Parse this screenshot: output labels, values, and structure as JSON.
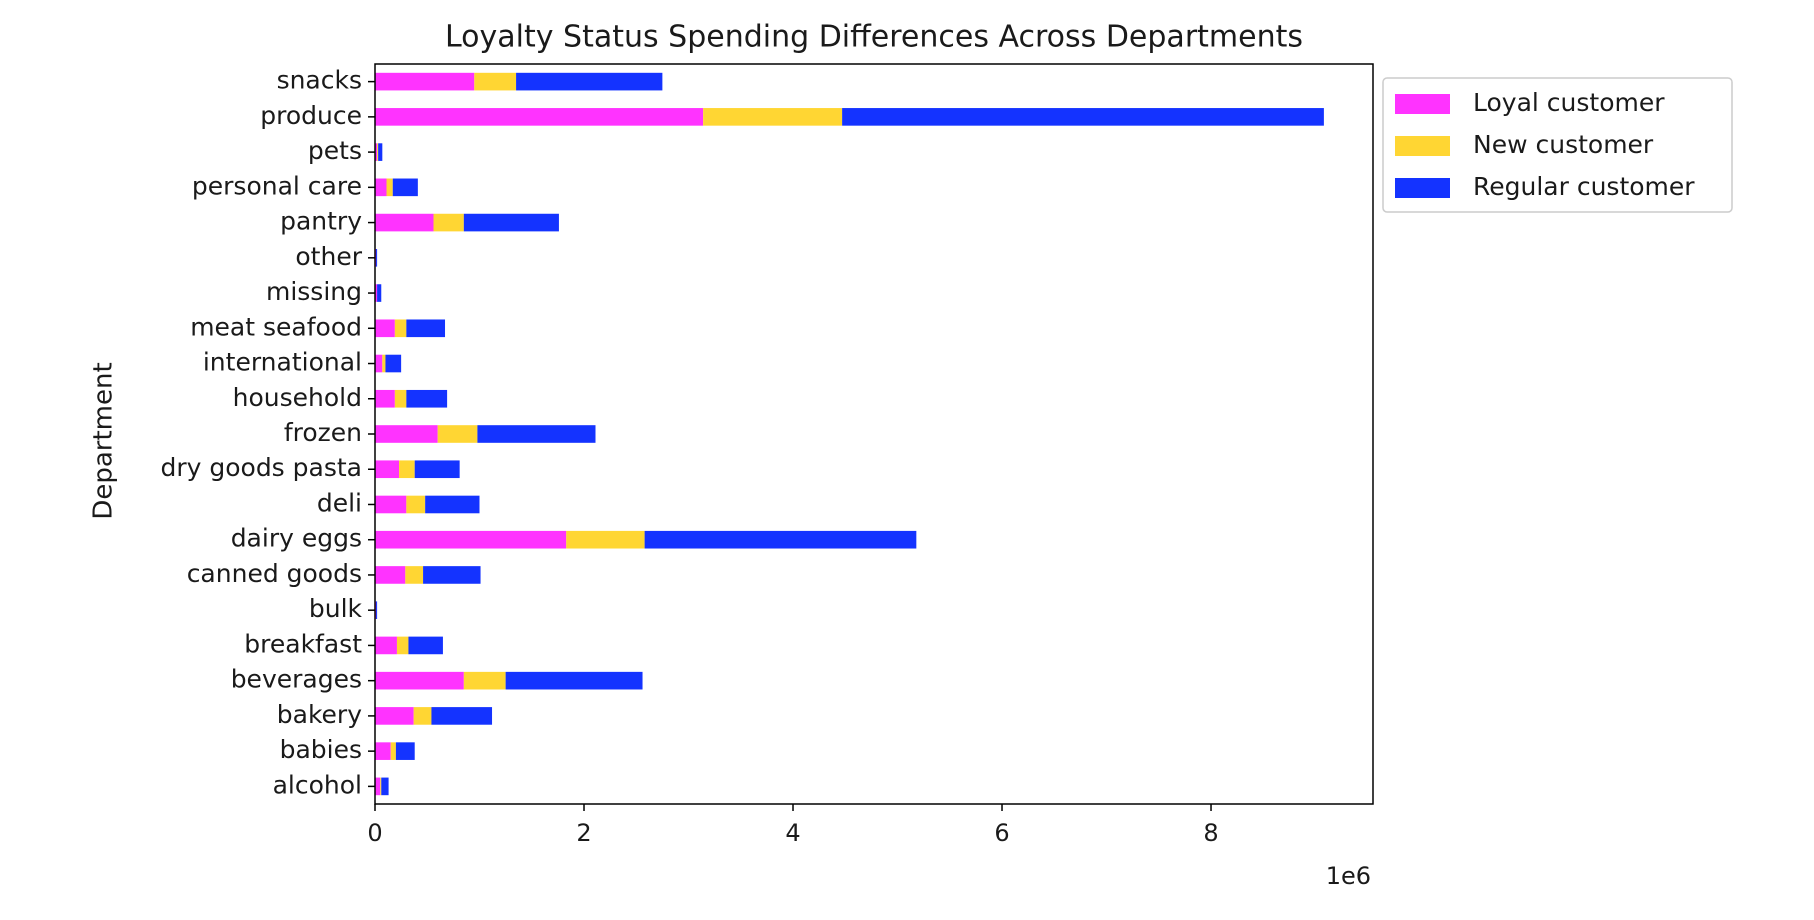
{
  "chart_data": {
    "type": "bar",
    "orientation": "horizontal",
    "stacked": true,
    "title": "Loyalty Status Spending Differences Across Departments",
    "xlabel": "",
    "ylabel": "Department",
    "x_offset_label": "1e6",
    "x_scale": 1000000,
    "xlim": [
      0,
      9.55
    ],
    "xticks": [
      0,
      2,
      4,
      6,
      8
    ],
    "grid": false,
    "legend_position": "outside-top-right",
    "categories": [
      "alcohol",
      "babies",
      "bakery",
      "beverages",
      "breakfast",
      "bulk",
      "canned goods",
      "dairy eggs",
      "deli",
      "dry goods pasta",
      "frozen",
      "household",
      "international",
      "meat seafood",
      "missing",
      "other",
      "pantry",
      "personal care",
      "pets",
      "produce",
      "snacks"
    ],
    "series": [
      {
        "name": "Loyal customer",
        "color": "#ff33ff",
        "values": [
          0.05,
          0.15,
          0.37,
          0.85,
          0.21,
          0.01,
          0.29,
          1.83,
          0.3,
          0.23,
          0.6,
          0.19,
          0.07,
          0.19,
          0.02,
          0.01,
          0.56,
          0.11,
          0.02,
          3.14,
          0.95
        ]
      },
      {
        "name": "New customer",
        "color": "#ffd633",
        "values": [
          0.01,
          0.05,
          0.17,
          0.4,
          0.11,
          0.0,
          0.17,
          0.75,
          0.18,
          0.15,
          0.38,
          0.11,
          0.03,
          0.11,
          0.0,
          0.0,
          0.29,
          0.06,
          0.01,
          1.33,
          0.4
        ]
      },
      {
        "name": "Regular customer",
        "color": "#1433ff",
        "values": [
          0.07,
          0.18,
          0.58,
          1.31,
          0.33,
          0.01,
          0.55,
          2.6,
          0.52,
          0.43,
          1.13,
          0.39,
          0.15,
          0.37,
          0.04,
          0.01,
          0.91,
          0.24,
          0.04,
          4.61,
          1.4
        ]
      }
    ]
  }
}
